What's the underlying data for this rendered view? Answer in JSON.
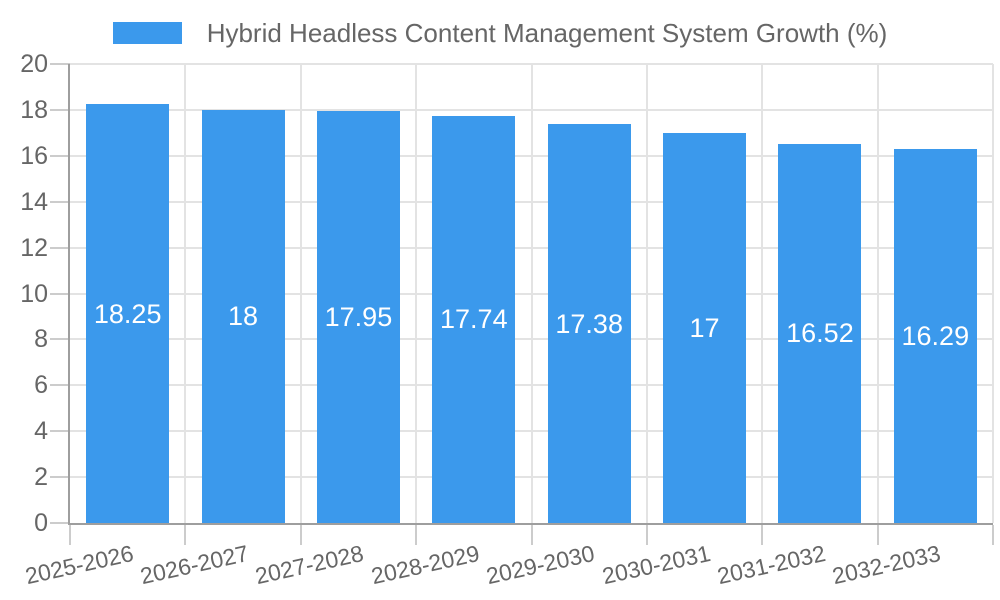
{
  "chart_data": {
    "type": "bar",
    "title": "Hybrid Headless Content Management System Growth (%)",
    "categories": [
      "2025-2026",
      "2026-2027",
      "2027-2028",
      "2028-2029",
      "2029-2030",
      "2030-2031",
      "2031-2032",
      "2032-2033"
    ],
    "values": [
      18.25,
      18,
      17.95,
      17.74,
      17.38,
      17,
      16.52,
      16.29
    ],
    "value_labels": [
      "18.25",
      "18",
      "17.95",
      "17.74",
      "17.38",
      "17",
      "16.52",
      "16.29"
    ],
    "xlabel": "",
    "ylabel": "",
    "ylim": [
      0,
      20
    ],
    "y_ticks": [
      0,
      2,
      4,
      6,
      8,
      10,
      12,
      14,
      16,
      18,
      20
    ],
    "grid": true,
    "legend_position": "top",
    "colors": {
      "bar": "#3b99ec",
      "bar_label": "#ffffff",
      "axis_text": "#666666",
      "gridline": "#e3e3e3",
      "tick": "#cccccc",
      "axis_line": "#9e9e9e",
      "background": "#ffffff"
    }
  }
}
